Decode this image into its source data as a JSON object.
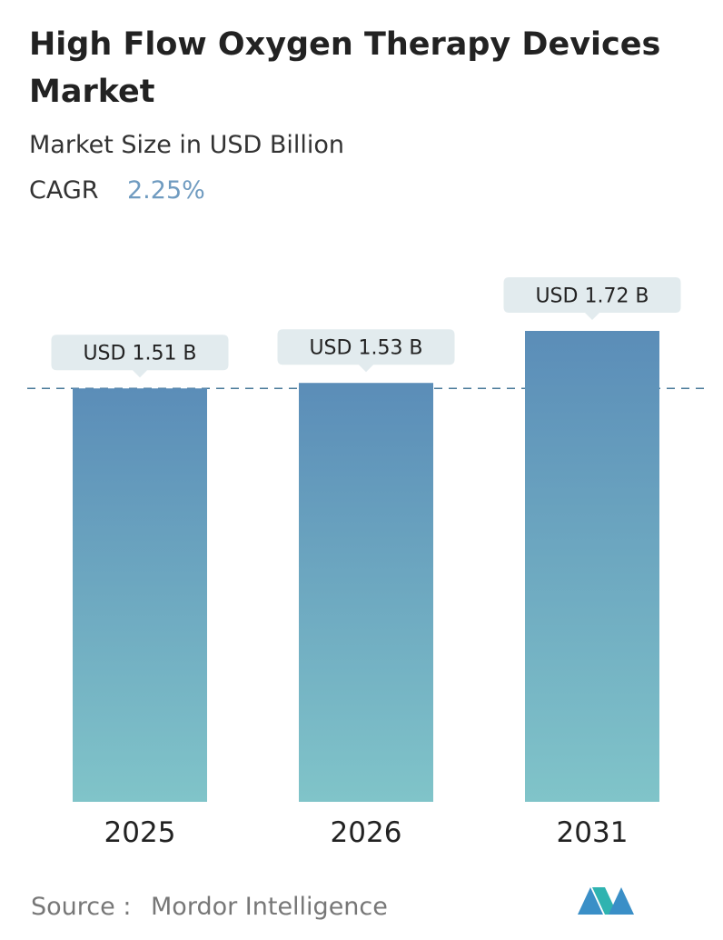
{
  "chart_data": {
    "type": "bar",
    "title": [
      "High Flow Oxygen Therapy Devices",
      "Market"
    ],
    "subtitle": "Market Size in USD Billion",
    "cagr": {
      "label": "CAGR",
      "value": "2.25%"
    },
    "categories": [
      "2025",
      "2026",
      "2031"
    ],
    "values": [
      1.51,
      1.53,
      1.72
    ],
    "value_labels": [
      "USD 1.51 B",
      "USD 1.53 B",
      "USD 1.72 B"
    ],
    "color": [
      "#5b8db8",
      "#80c4c9"
    ],
    "source": {
      "label": "Source :",
      "value": "Mordor Intelligence"
    }
  }
}
